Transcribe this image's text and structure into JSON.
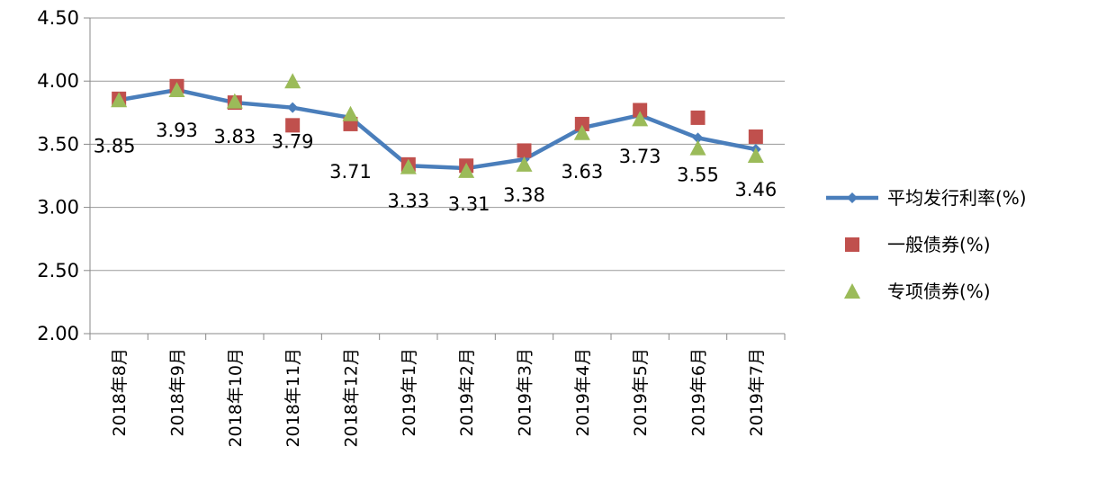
{
  "chart_data": {
    "type": "line",
    "categories": [
      "2018年8月",
      "2018年9月",
      "2018年10月",
      "2018年11月",
      "2018年12月",
      "2019年1月",
      "2019年2月",
      "2019年3月",
      "2019年4月",
      "2019年5月",
      "2019年6月",
      "2019年7月"
    ],
    "ylim": [
      2.0,
      4.5
    ],
    "yticks": [
      "2.00",
      "2.50",
      "3.00",
      "3.50",
      "4.00",
      "4.50"
    ],
    "grid": true,
    "legend_position": "right",
    "series": [
      {
        "name": "平均发行利率(%)",
        "marker": "diamond-line",
        "color": "#4a7ebb",
        "values": [
          3.85,
          3.93,
          3.83,
          3.79,
          3.71,
          3.33,
          3.31,
          3.38,
          3.63,
          3.73,
          3.55,
          3.46
        ],
        "labels": [
          "3.85",
          "3.93",
          "3.83",
          "3.79",
          "3.71",
          "3.33",
          "3.31",
          "3.38",
          "3.63",
          "3.73",
          "3.55",
          "3.46"
        ]
      },
      {
        "name": "一般债券(%)",
        "marker": "square",
        "color": "#c0504d",
        "values": [
          3.86,
          3.96,
          3.83,
          3.65,
          3.66,
          3.34,
          3.33,
          3.45,
          3.66,
          3.77,
          3.71,
          3.56
        ]
      },
      {
        "name": "专项债券(%)",
        "marker": "triangle",
        "color": "#9bbb59",
        "values": [
          3.85,
          3.93,
          3.84,
          4.0,
          3.74,
          3.32,
          3.29,
          3.34,
          3.59,
          3.7,
          3.47,
          3.41
        ]
      }
    ]
  }
}
